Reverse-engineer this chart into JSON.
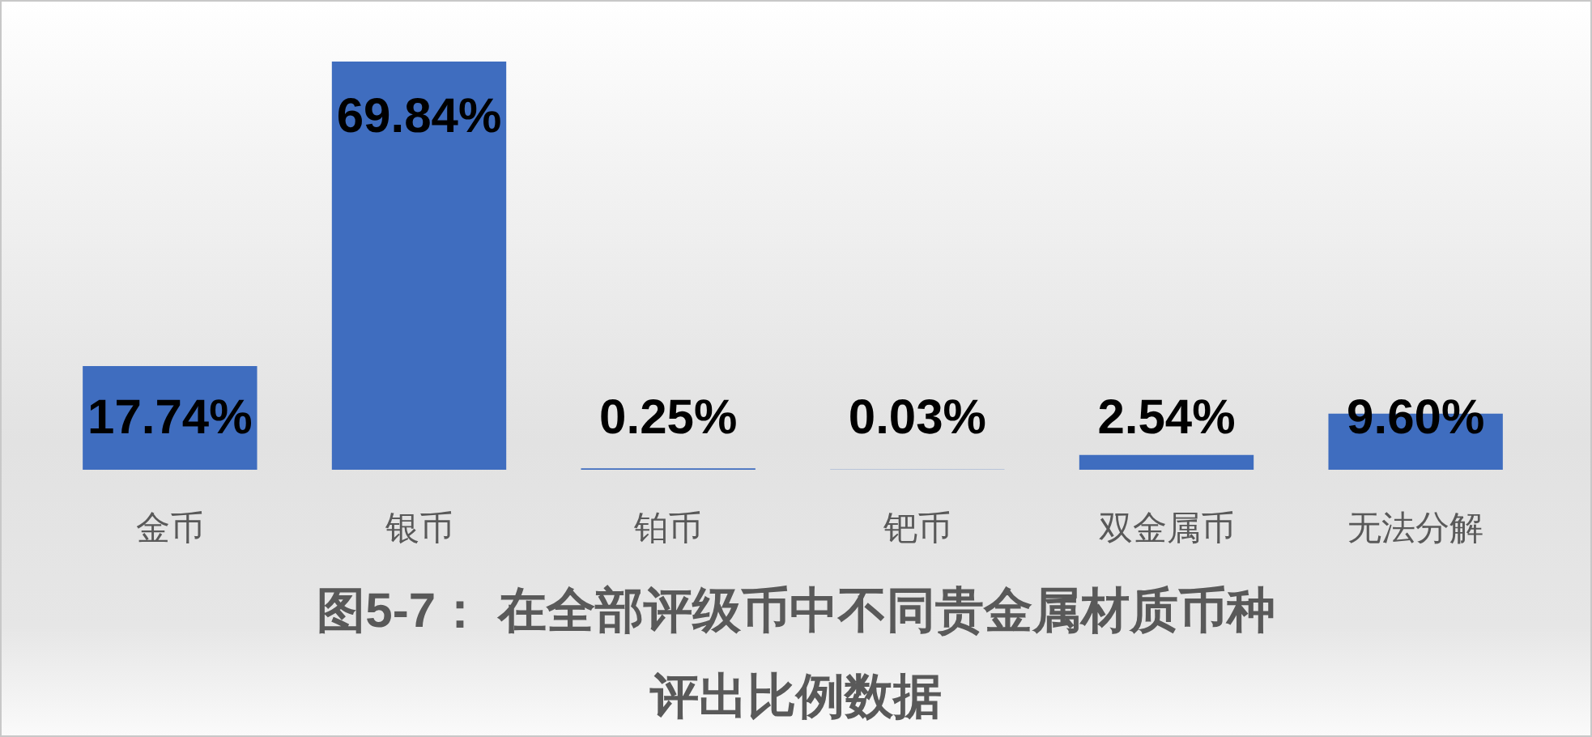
{
  "chart_data": {
    "type": "bar",
    "title": "图5-7： 在全部评级币中不同贵金属材质币种评出比例数据",
    "categories": [
      "金币",
      "银币",
      "铂币",
      "钯币",
      "双金属币",
      "无法分解"
    ],
    "values": [
      17.74,
      69.84,
      0.25,
      0.03,
      2.54,
      9.6
    ],
    "value_labels": [
      "17.74%",
      "69.84%",
      "0.25%",
      "0.03%",
      "2.54%",
      "9.60%"
    ],
    "color": "#3f6dbf"
  }
}
